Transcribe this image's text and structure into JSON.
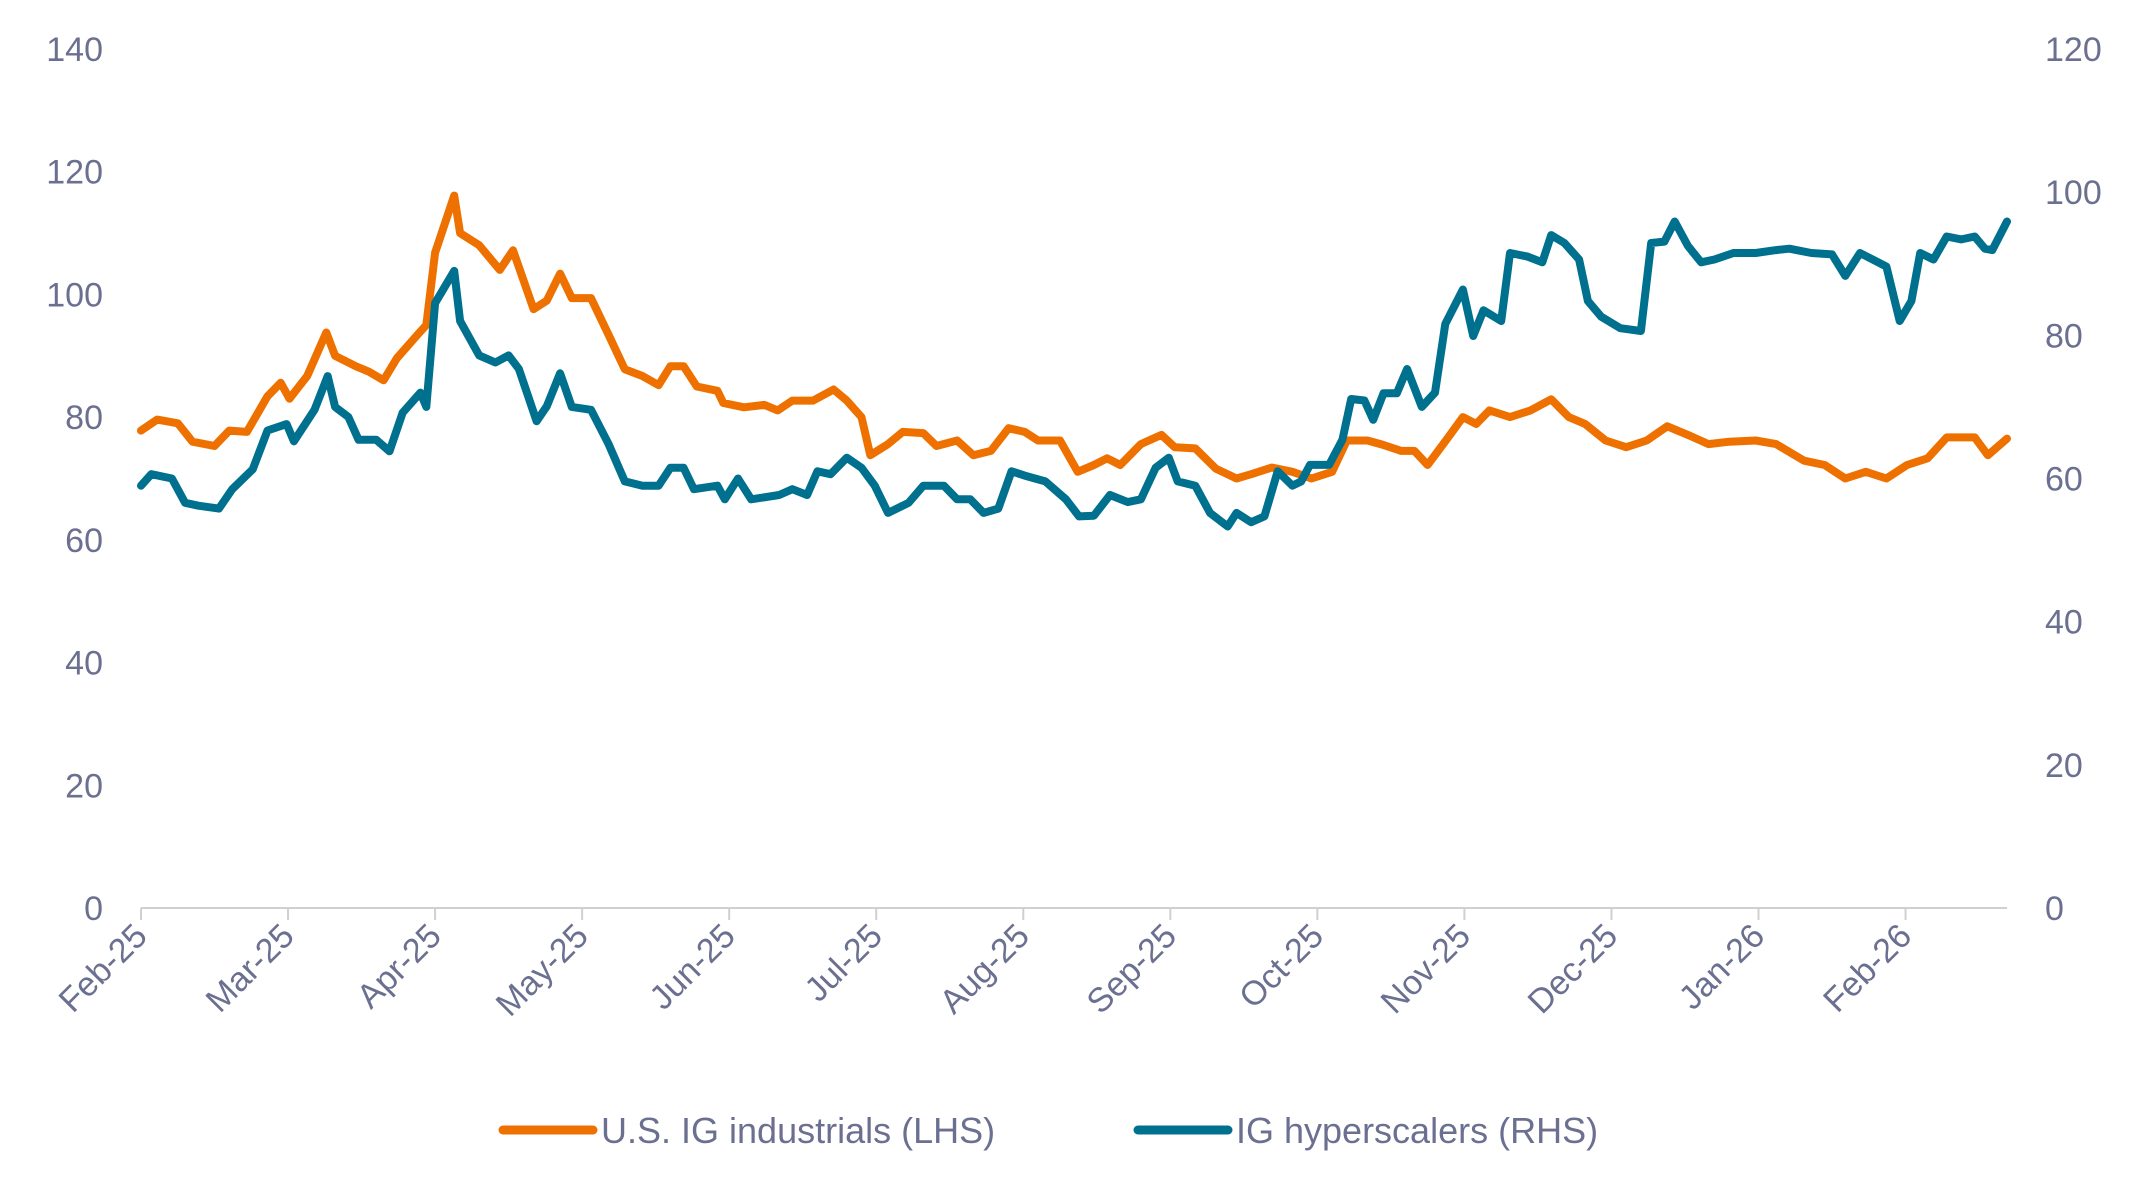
{
  "chart_data": {
    "type": "line",
    "title": "",
    "xlabel": "",
    "ylabel_left": "",
    "ylabel_right": "",
    "x_unit": "months since Feb-25",
    "x_tick_labels": [
      "Feb-25",
      "Mar-25",
      "Apr-25",
      "May-25",
      "Jun-25",
      "Jul-25",
      "Aug-25",
      "Sep-25",
      "Oct-25",
      "Nov-25",
      "Dec-25",
      "Jan-26",
      "Feb-26"
    ],
    "xlim": [
      0,
      12.69
    ],
    "ylim_left": [
      0,
      140
    ],
    "yticks_left": [
      "0",
      "20",
      "40",
      "60",
      "80",
      "100",
      "120",
      "140"
    ],
    "ylim_right": [
      0,
      120
    ],
    "yticks_right": [
      "0",
      "20",
      "40",
      "60",
      "80",
      "100",
      "120"
    ],
    "grid": false,
    "legend_position": "bottom",
    "series": [
      {
        "name": "U.S. IG industrials (LHS)",
        "axis": "left",
        "color": "#ee7100",
        "points": [
          [
            0,
            77.8
          ],
          [
            0.11,
            79.6
          ],
          [
            0.25,
            79
          ],
          [
            0.35,
            76
          ],
          [
            0.5,
            75.3
          ],
          [
            0.6,
            77.8
          ],
          [
            0.72,
            77.6
          ],
          [
            0.86,
            83.4
          ],
          [
            0.95,
            85.6
          ],
          [
            1.01,
            83
          ],
          [
            1.13,
            86.7
          ],
          [
            1.26,
            93.8
          ],
          [
            1.32,
            90
          ],
          [
            1.46,
            88.3
          ],
          [
            1.55,
            87.4
          ],
          [
            1.65,
            86
          ],
          [
            1.74,
            89.6
          ],
          [
            1.88,
            93.4
          ],
          [
            1.94,
            95
          ],
          [
            2.0,
            106.8
          ],
          [
            2.13,
            116.1
          ],
          [
            2.17,
            110
          ],
          [
            2.3,
            108
          ],
          [
            2.44,
            104
          ],
          [
            2.53,
            107.2
          ],
          [
            2.67,
            97.6
          ],
          [
            2.76,
            99
          ],
          [
            2.85,
            103.4
          ],
          [
            2.93,
            99.4
          ],
          [
            3.06,
            99.4
          ],
          [
            3.18,
            93.4
          ],
          [
            3.29,
            87.8
          ],
          [
            3.41,
            86.7
          ],
          [
            3.52,
            85.2
          ],
          [
            3.6,
            88.3
          ],
          [
            3.69,
            88.3
          ],
          [
            3.78,
            85
          ],
          [
            3.92,
            84.3
          ],
          [
            3.96,
            82.3
          ],
          [
            4.1,
            81.6
          ],
          [
            4.24,
            82
          ],
          [
            4.33,
            81.1
          ],
          [
            4.43,
            82.7
          ],
          [
            4.57,
            82.7
          ],
          [
            4.71,
            84.5
          ],
          [
            4.8,
            82.7
          ],
          [
            4.9,
            80
          ],
          [
            4.96,
            73.8
          ],
          [
            5.08,
            75.6
          ],
          [
            5.18,
            77.6
          ],
          [
            5.32,
            77.4
          ],
          [
            5.41,
            75.3
          ],
          [
            5.55,
            76.2
          ],
          [
            5.66,
            73.8
          ],
          [
            5.78,
            74.5
          ],
          [
            5.9,
            78.2
          ],
          [
            6.01,
            77.6
          ],
          [
            6.1,
            76.2
          ],
          [
            6.25,
            76.2
          ],
          [
            6.37,
            71.1
          ],
          [
            6.48,
            72.2
          ],
          [
            6.57,
            73.3
          ],
          [
            6.66,
            72.2
          ],
          [
            6.8,
            75.6
          ],
          [
            6.94,
            77.1
          ],
          [
            7.03,
            75.1
          ],
          [
            7.17,
            74.9
          ],
          [
            7.31,
            71.6
          ],
          [
            7.45,
            70
          ],
          [
            7.55,
            70.7
          ],
          [
            7.69,
            71.8
          ],
          [
            7.83,
            71.1
          ],
          [
            7.96,
            70
          ],
          [
            8.1,
            71.1
          ],
          [
            8.2,
            76.2
          ],
          [
            8.34,
            76.2
          ],
          [
            8.43,
            75.6
          ],
          [
            8.57,
            74.5
          ],
          [
            8.66,
            74.5
          ],
          [
            8.75,
            72.2
          ],
          [
            8.89,
            76.7
          ],
          [
            8.99,
            80
          ],
          [
            9.08,
            78.9
          ],
          [
            9.17,
            81.1
          ],
          [
            9.31,
            80
          ],
          [
            9.45,
            81.1
          ],
          [
            9.59,
            82.9
          ],
          [
            9.71,
            80
          ],
          [
            9.82,
            78.9
          ],
          [
            9.96,
            76.2
          ],
          [
            10.1,
            75.1
          ],
          [
            10.24,
            76.2
          ],
          [
            10.38,
            78.5
          ],
          [
            10.52,
            77.1
          ],
          [
            10.66,
            75.6
          ],
          [
            10.8,
            76
          ],
          [
            10.98,
            76.2
          ],
          [
            11.12,
            75.6
          ],
          [
            11.31,
            72.9
          ],
          [
            11.45,
            72.2
          ],
          [
            11.59,
            70
          ],
          [
            11.73,
            71.1
          ],
          [
            11.87,
            70
          ],
          [
            12.01,
            72.2
          ],
          [
            12.15,
            73.3
          ],
          [
            12.28,
            76.7
          ],
          [
            12.47,
            76.7
          ],
          [
            12.56,
            73.8
          ],
          [
            12.69,
            76.5
          ]
        ]
      },
      {
        "name": "IG hyperscalers (RHS)",
        "axis": "right",
        "color": "#00708f",
        "points": [
          [
            0,
            59
          ],
          [
            0.07,
            60.6
          ],
          [
            0.21,
            60
          ],
          [
            0.3,
            56.6
          ],
          [
            0.39,
            56.2
          ],
          [
            0.53,
            55.8
          ],
          [
            0.62,
            58.5
          ],
          [
            0.76,
            61.3
          ],
          [
            0.86,
            66.7
          ],
          [
            0.99,
            67.6
          ],
          [
            1.04,
            65.2
          ],
          [
            1.18,
            69.6
          ],
          [
            1.27,
            74.3
          ],
          [
            1.32,
            70
          ],
          [
            1.41,
            68.6
          ],
          [
            1.48,
            65.4
          ],
          [
            1.6,
            65.4
          ],
          [
            1.69,
            63.8
          ],
          [
            1.78,
            69.2
          ],
          [
            1.9,
            72
          ],
          [
            1.94,
            70
          ],
          [
            2.0,
            84.5
          ],
          [
            2.13,
            89
          ],
          [
            2.17,
            82
          ],
          [
            2.3,
            77.2
          ],
          [
            2.41,
            76.2
          ],
          [
            2.5,
            77.2
          ],
          [
            2.57,
            75.3
          ],
          [
            2.69,
            68
          ],
          [
            2.76,
            70.1
          ],
          [
            2.85,
            74.7
          ],
          [
            2.93,
            70
          ],
          [
            3.06,
            69.6
          ],
          [
            3.18,
            64.8
          ],
          [
            3.29,
            59.6
          ],
          [
            3.41,
            59
          ],
          [
            3.52,
            59
          ],
          [
            3.6,
            61.5
          ],
          [
            3.69,
            61.5
          ],
          [
            3.76,
            58.5
          ],
          [
            3.92,
            59
          ],
          [
            3.97,
            57.1
          ],
          [
            4.06,
            60
          ],
          [
            4.15,
            57.1
          ],
          [
            4.34,
            57.7
          ],
          [
            4.43,
            58.5
          ],
          [
            4.53,
            57.7
          ],
          [
            4.6,
            61
          ],
          [
            4.69,
            60.6
          ],
          [
            4.8,
            62.9
          ],
          [
            4.9,
            61.5
          ],
          [
            4.99,
            59
          ],
          [
            5.08,
            55.2
          ],
          [
            5.22,
            56.6
          ],
          [
            5.32,
            59
          ],
          [
            5.46,
            59
          ],
          [
            5.55,
            57.1
          ],
          [
            5.64,
            57.1
          ],
          [
            5.73,
            55.2
          ],
          [
            5.83,
            55.8
          ],
          [
            5.92,
            61
          ],
          [
            6.01,
            60.4
          ],
          [
            6.15,
            59.6
          ],
          [
            6.29,
            57.1
          ],
          [
            6.38,
            54.7
          ],
          [
            6.48,
            54.8
          ],
          [
            6.59,
            57.7
          ],
          [
            6.71,
            56.7
          ],
          [
            6.8,
            57.1
          ],
          [
            6.9,
            61.5
          ],
          [
            6.99,
            62.9
          ],
          [
            7.05,
            59.6
          ],
          [
            7.17,
            59
          ],
          [
            7.27,
            55.2
          ],
          [
            7.39,
            53.3
          ],
          [
            7.45,
            55.2
          ],
          [
            7.55,
            53.9
          ],
          [
            7.64,
            54.7
          ],
          [
            7.73,
            61
          ],
          [
            7.83,
            59
          ],
          [
            7.89,
            59.6
          ],
          [
            7.95,
            61.9
          ],
          [
            8.08,
            61.9
          ],
          [
            8.17,
            65.4
          ],
          [
            8.23,
            71.1
          ],
          [
            8.32,
            70.9
          ],
          [
            8.38,
            68.2
          ],
          [
            8.45,
            71.9
          ],
          [
            8.54,
            71.9
          ],
          [
            8.61,
            75.3
          ],
          [
            8.71,
            70
          ],
          [
            8.8,
            72
          ],
          [
            8.87,
            81.6
          ],
          [
            8.99,
            86.4
          ],
          [
            9.06,
            79.9
          ],
          [
            9.13,
            83.5
          ],
          [
            9.25,
            82
          ],
          [
            9.31,
            91.5
          ],
          [
            9.43,
            91
          ],
          [
            9.53,
            90.2
          ],
          [
            9.59,
            94
          ],
          [
            9.68,
            92.9
          ],
          [
            9.78,
            90.6
          ],
          [
            9.84,
            84.8
          ],
          [
            9.93,
            82.6
          ],
          [
            10.06,
            81
          ],
          [
            10.2,
            80.6
          ],
          [
            10.27,
            92.9
          ],
          [
            10.36,
            93.1
          ],
          [
            10.43,
            95.9
          ],
          [
            10.52,
            92.5
          ],
          [
            10.61,
            90.2
          ],
          [
            10.7,
            90.6
          ],
          [
            10.83,
            91.5
          ],
          [
            10.98,
            91.5
          ],
          [
            11.12,
            91.9
          ],
          [
            11.21,
            92.1
          ],
          [
            11.36,
            91.5
          ],
          [
            11.5,
            91.3
          ],
          [
            11.59,
            88.3
          ],
          [
            11.69,
            91.5
          ],
          [
            11.87,
            89.6
          ],
          [
            11.96,
            82
          ],
          [
            12.04,
            84.8
          ],
          [
            12.1,
            91.5
          ],
          [
            12.19,
            90.6
          ],
          [
            12.28,
            93.8
          ],
          [
            12.38,
            93.4
          ],
          [
            12.47,
            93.8
          ],
          [
            12.54,
            92.1
          ],
          [
            12.59,
            91.9
          ],
          [
            12.69,
            95.9
          ]
        ]
      }
    ]
  }
}
